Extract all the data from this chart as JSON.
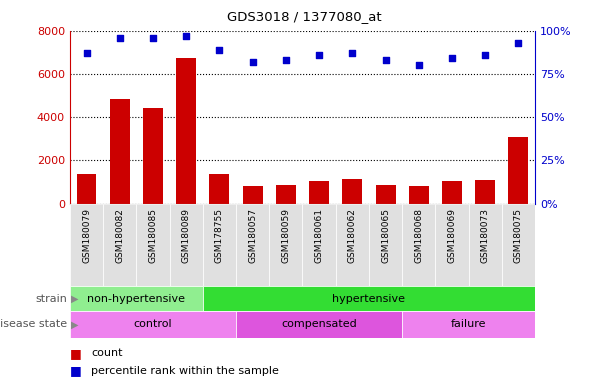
{
  "title": "GDS3018 / 1377080_at",
  "categories": [
    "GSM180079",
    "GSM180082",
    "GSM180085",
    "GSM180089",
    "GSM178755",
    "GSM180057",
    "GSM180059",
    "GSM180061",
    "GSM180062",
    "GSM180065",
    "GSM180068",
    "GSM180069",
    "GSM180073",
    "GSM180075"
  ],
  "counts": [
    1350,
    4850,
    4420,
    6750,
    1380,
    820,
    870,
    1020,
    1130,
    870,
    800,
    1020,
    1070,
    3100
  ],
  "percentile_ranks": [
    87,
    96,
    96,
    97,
    89,
    82,
    83,
    86,
    87,
    83,
    80,
    84,
    86,
    93
  ],
  "bar_color": "#CC0000",
  "dot_color": "#0000CC",
  "ylim_left": [
    0,
    8000
  ],
  "ylim_right": [
    0,
    100
  ],
  "yticks_left": [
    0,
    2000,
    4000,
    6000,
    8000
  ],
  "yticks_right": [
    0,
    25,
    50,
    75,
    100
  ],
  "strain_groups": [
    {
      "label": "non-hypertensive",
      "start": 0,
      "end": 4,
      "color": "#90EE90"
    },
    {
      "label": "hypertensive",
      "start": 4,
      "end": 14,
      "color": "#33DD33"
    }
  ],
  "disease_groups": [
    {
      "label": "control",
      "start": 0,
      "end": 5,
      "color": "#EE82EE"
    },
    {
      "label": "compensated",
      "start": 5,
      "end": 10,
      "color": "#DD55DD"
    },
    {
      "label": "failure",
      "start": 10,
      "end": 14,
      "color": "#EE82EE"
    }
  ],
  "strain_label": "strain",
  "disease_label": "disease state",
  "legend_count": "count",
  "legend_percentile": "percentile rank within the sample",
  "background_color": "#ffffff"
}
